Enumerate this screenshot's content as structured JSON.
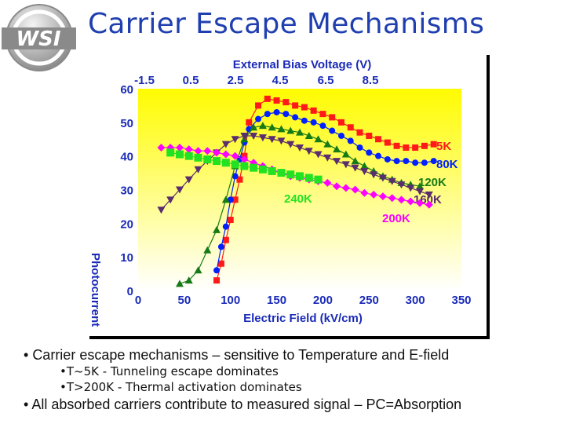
{
  "slide": {
    "title": "Carrier Escape Mechanisms",
    "logo_text": "WSI",
    "bullets": [
      "Carrier escape mechanisms – sensitive to Temperature and E-field",
      "T~5K - Tunneling escape dominates",
      "T>200K - Thermal activation dominates",
      "All absorbed carriers contribute to measured signal – PC=Absorption"
    ]
  },
  "colors": {
    "title": "#1f3fb0",
    "axis_text": "#1a2bb8",
    "gradient_top": "#fffb00",
    "gradient_bottom": "#ffffff",
    "frame_shadow": "#000000"
  },
  "chart_data": {
    "type": "scatter",
    "title": "",
    "xlabel": "Electric Field (kV/cm)",
    "ylabel": "Photocurrent",
    "x2label": "External Bias Voltage (V)",
    "xlim": [
      0,
      350
    ],
    "ylim": [
      0,
      60
    ],
    "x_ticks": [
      "0",
      "50",
      "100",
      "150",
      "200",
      "250",
      "300",
      "350"
    ],
    "y_ticks": [
      "0",
      "10",
      "20",
      "30",
      "40",
      "50",
      "60"
    ],
    "x2_ticks": [
      "-1.5",
      "0.5",
      "2.5",
      "4.5",
      "6.5",
      "8.5"
    ],
    "grid": false,
    "series": [
      {
        "name": "5K",
        "color": "#ff1a1a",
        "marker": "square",
        "x": [
          85,
          90,
          95,
          100,
          105,
          110,
          115,
          120,
          130,
          140,
          150,
          160,
          170,
          180,
          190,
          200,
          210,
          220,
          230,
          240,
          250,
          260,
          270,
          280,
          290,
          300,
          310,
          320
        ],
        "y": [
          3,
          8,
          15,
          21,
          27,
          33,
          40,
          50,
          55,
          57,
          56.5,
          56,
          55,
          54.5,
          53.5,
          52.5,
          51.5,
          50,
          48.5,
          47,
          46,
          45,
          44,
          43,
          42.5,
          42.5,
          43,
          43.5
        ]
      },
      {
        "name": "80K",
        "color": "#0020ff",
        "marker": "circle",
        "x": [
          85,
          90,
          95,
          100,
          105,
          110,
          115,
          120,
          130,
          140,
          150,
          160,
          170,
          180,
          190,
          200,
          210,
          220,
          230,
          240,
          250,
          260,
          270,
          280,
          290,
          300,
          310,
          320
        ],
        "y": [
          6,
          13,
          19,
          27,
          34,
          39,
          44,
          48,
          51,
          52.5,
          53,
          52.5,
          51.5,
          50.5,
          50,
          49,
          47.5,
          46,
          44.5,
          42.5,
          41,
          40,
          39,
          38.5,
          38.5,
          38,
          38,
          38.5
        ]
      },
      {
        "name": "120K",
        "color": "#167a16",
        "marker": "triangle-up",
        "x": [
          45,
          55,
          65,
          75,
          85,
          95,
          105,
          115,
          125,
          135,
          145,
          155,
          165,
          175,
          185,
          195,
          205,
          215,
          225,
          235,
          245,
          255,
          265,
          275,
          285,
          295,
          305
        ],
        "y": [
          2,
          3,
          6,
          12,
          18,
          27,
          37,
          45,
          48.5,
          49,
          48.5,
          48,
          47.5,
          47,
          46,
          45,
          43.5,
          42,
          40.5,
          38.5,
          37,
          35.5,
          34,
          33,
          32,
          31.5,
          31
        ]
      },
      {
        "name": "160K",
        "color": "#5a2d6e",
        "marker": "triangle-down",
        "x": [
          25,
          35,
          45,
          55,
          65,
          75,
          85,
          95,
          105,
          115,
          125,
          135,
          145,
          155,
          165,
          175,
          185,
          195,
          205,
          215,
          225,
          235,
          245,
          255,
          265,
          275,
          285,
          295,
          305,
          315
        ],
        "y": [
          24,
          27,
          30,
          33,
          36,
          38.5,
          41,
          43.5,
          45,
          46,
          46,
          45.5,
          45,
          44.5,
          43.5,
          42.5,
          41.5,
          40.5,
          39.5,
          38.5,
          37.5,
          36.5,
          35.5,
          34.5,
          33.5,
          32.5,
          31.5,
          30.5,
          29.5,
          28.5
        ]
      },
      {
        "name": "200K",
        "color": "#ff00ff",
        "marker": "diamond",
        "x": [
          25,
          35,
          45,
          55,
          65,
          75,
          85,
          95,
          105,
          115,
          125,
          135,
          145,
          155,
          165,
          175,
          185,
          195,
          205,
          215,
          225,
          235,
          245,
          255,
          265,
          275,
          285,
          295,
          305,
          315
        ],
        "y": [
          42.5,
          42.5,
          42.5,
          42,
          41.5,
          41.5,
          41,
          40.5,
          40,
          39,
          38,
          37,
          36,
          35,
          34,
          33.5,
          33,
          32.5,
          32,
          31,
          30.5,
          30,
          29,
          28.5,
          28,
          27.5,
          27,
          26.5,
          26,
          25.5
        ]
      },
      {
        "name": "240K",
        "color": "#22e222",
        "marker": "square",
        "x": [
          35,
          45,
          55,
          65,
          75,
          85,
          95,
          105,
          115,
          125,
          135,
          145,
          155,
          165,
          175,
          185,
          195
        ],
        "y": [
          41,
          40.5,
          40,
          39.5,
          39,
          38.5,
          38,
          37.5,
          37,
          36.5,
          36,
          35.5,
          35,
          34.5,
          34,
          33.5,
          33
        ]
      }
    ]
  }
}
